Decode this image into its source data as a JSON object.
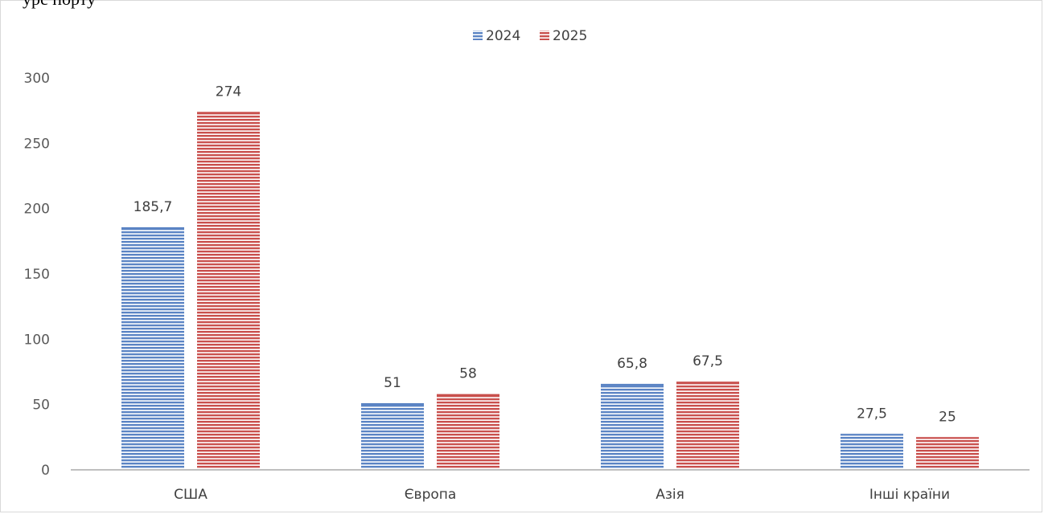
{
  "cropped_top_text": "урс порту",
  "colors": {
    "series_2024": "#5b84c4",
    "series_2025": "#c9504d"
  },
  "chart_data": {
    "type": "bar",
    "categories": [
      "США",
      "Європа",
      "Азія",
      "Інші країни"
    ],
    "series": [
      {
        "name": "2024",
        "values": [
          185.7,
          51,
          65.8,
          27.5
        ],
        "labels": [
          "185,7",
          "51",
          "65,8",
          "27,5"
        ]
      },
      {
        "name": "2025",
        "values": [
          274,
          58,
          67.5,
          25
        ],
        "labels": [
          "274",
          "58",
          "67,5",
          "25"
        ]
      }
    ],
    "ylim": [
      0,
      300
    ],
    "yticks": [
      "0",
      "50",
      "100",
      "150",
      "200",
      "250",
      "300"
    ],
    "legend_position": "top",
    "grid": false
  }
}
